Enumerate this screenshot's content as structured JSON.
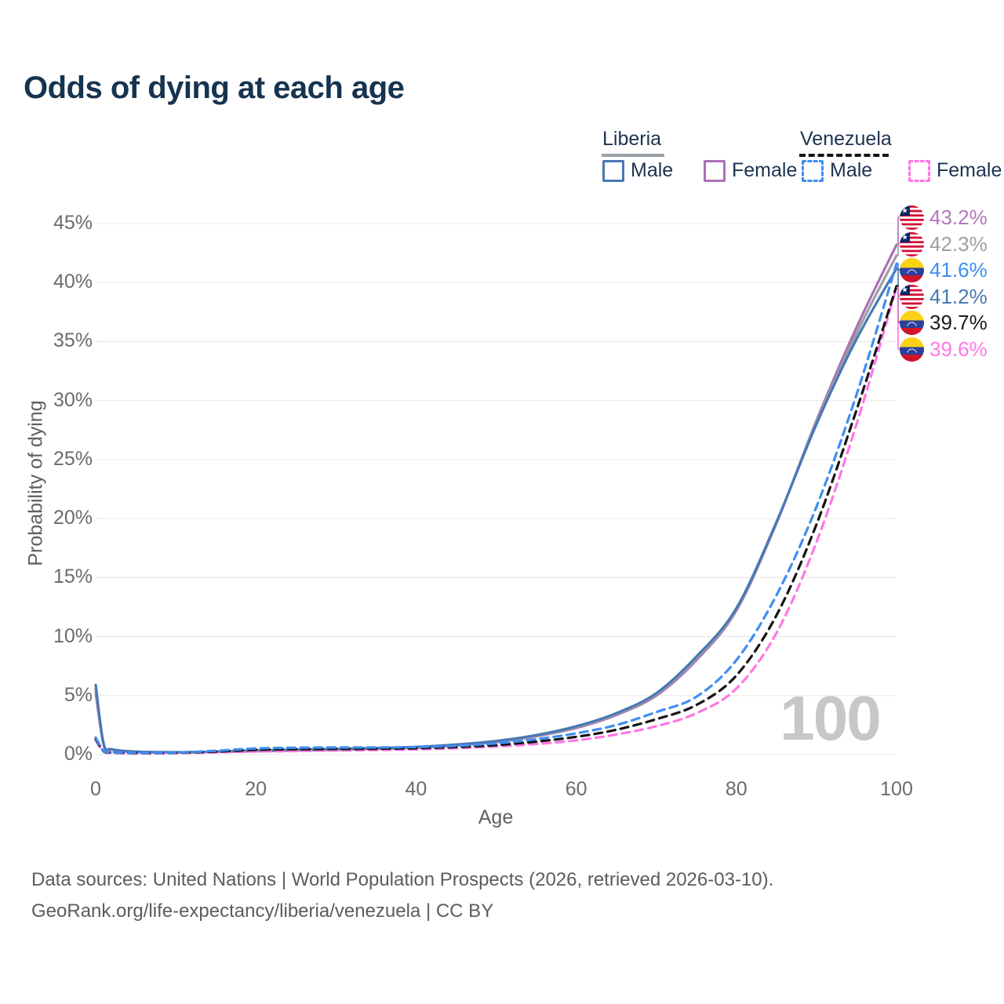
{
  "title": "Odds of dying at each age",
  "watermark": "100",
  "legend": {
    "liberia": {
      "label": "Liberia",
      "male": "Male",
      "female": "Female"
    },
    "venezuela": {
      "label": "Venezuela",
      "male": "Male",
      "female": "Female"
    }
  },
  "footer": {
    "line1": "Data sources: United Nations | World Population Prospects (2026, retrieved 2026-03-10).",
    "line2": "GeoRank.org/life-expectancy/liberia/venezuela | CC BY"
  },
  "colors": {
    "title_navy": "#16334f",
    "liberia_male": "#4878b4",
    "liberia_female": "#aa70b5",
    "liberia_total": "#9c9ea3",
    "venezuela_male": "#3f8ef2",
    "venezuela_female": "#ff77e4",
    "venezuela_total": "#141414",
    "grid": "#ececec",
    "tick_text": "#6b6b6b"
  },
  "chart_data": {
    "type": "line",
    "title": "Odds of dying at each age",
    "xlabel": "Age",
    "ylabel": "Probability of dying",
    "xlim": [
      0,
      100
    ],
    "ylim": [
      0,
      45
    ],
    "x_ticks": [
      0,
      20,
      40,
      60,
      80,
      100
    ],
    "y_ticks": [
      "0%",
      "5%",
      "10%",
      "15%",
      "20%",
      "25%",
      "30%",
      "35%",
      "40%",
      "45%"
    ],
    "grid": "horizontal-only",
    "legend_position": "top-right",
    "x": [
      0,
      1,
      2,
      5,
      10,
      15,
      20,
      25,
      30,
      35,
      40,
      45,
      50,
      55,
      60,
      65,
      70,
      75,
      80,
      85,
      90,
      95,
      100
    ],
    "series": [
      {
        "name": "Liberia Female",
        "country": "liberia",
        "sex": "female",
        "style": "solid",
        "color": "#aa70b5",
        "values": [
          5.2,
          0.8,
          0.4,
          0.22,
          0.18,
          0.22,
          0.28,
          0.34,
          0.4,
          0.48,
          0.58,
          0.78,
          1.05,
          1.55,
          2.25,
          3.35,
          5.0,
          8.0,
          12.2,
          19.6,
          28.3,
          36.2,
          43.2
        ]
      },
      {
        "name": "Liberia Total",
        "country": "liberia",
        "sex": "both",
        "style": "solid",
        "color": "#9c9ea3",
        "values": [
          5.55,
          0.85,
          0.42,
          0.24,
          0.19,
          0.24,
          0.32,
          0.38,
          0.44,
          0.52,
          0.62,
          0.82,
          1.1,
          1.6,
          2.32,
          3.42,
          5.1,
          8.15,
          12.3,
          19.65,
          28.15,
          35.7,
          42.3
        ]
      },
      {
        "name": "Liberia Male",
        "country": "liberia",
        "sex": "male",
        "style": "solid",
        "color": "#4878b4",
        "values": [
          5.9,
          0.9,
          0.45,
          0.25,
          0.2,
          0.25,
          0.35,
          0.42,
          0.48,
          0.55,
          0.65,
          0.85,
          1.15,
          1.65,
          2.4,
          3.5,
          5.2,
          8.3,
          12.4,
          19.7,
          28.0,
          35.2,
          41.2
        ]
      },
      {
        "name": "Venezuela Female",
        "country": "venezuela",
        "sex": "female",
        "style": "dashed",
        "color": "#ff77e4",
        "values": [
          1.2,
          0.25,
          0.15,
          0.1,
          0.12,
          0.18,
          0.26,
          0.3,
          0.34,
          0.38,
          0.44,
          0.54,
          0.68,
          0.9,
          1.2,
          1.7,
          2.4,
          3.5,
          5.6,
          10.3,
          18.0,
          28.0,
          39.6
        ]
      },
      {
        "name": "Venezuela Total",
        "country": "venezuela",
        "sex": "both",
        "style": "dashed",
        "color": "#141414",
        "values": [
          1.33,
          0.28,
          0.18,
          0.13,
          0.15,
          0.25,
          0.4,
          0.45,
          0.47,
          0.49,
          0.54,
          0.64,
          0.8,
          1.1,
          1.5,
          2.1,
          3.0,
          4.2,
          6.7,
          11.8,
          19.5,
          29.2,
          39.7
        ]
      },
      {
        "name": "Venezuela Male",
        "country": "venezuela",
        "sex": "male",
        "style": "dashed",
        "color": "#3f8ef2",
        "values": [
          1.45,
          0.3,
          0.2,
          0.15,
          0.17,
          0.32,
          0.52,
          0.58,
          0.6,
          0.6,
          0.64,
          0.74,
          0.95,
          1.3,
          1.8,
          2.5,
          3.6,
          4.9,
          8.0,
          13.5,
          21.0,
          30.5,
          41.6
        ]
      }
    ],
    "end_labels": [
      {
        "flag": "liberia",
        "text": "43.2%",
        "value": 43.2,
        "color": "#b277bb",
        "series": "Liberia Female"
      },
      {
        "flag": "liberia",
        "text": "42.3%",
        "value": 42.3,
        "color": "#a0a0a0",
        "series": "Liberia Total"
      },
      {
        "flag": "venezuela",
        "text": "41.6%",
        "value": 41.6,
        "color": "#3f8ef2",
        "series": "Venezuela Male"
      },
      {
        "flag": "liberia",
        "text": "41.2%",
        "value": 41.2,
        "color": "#4878b4",
        "series": "Liberia Male"
      },
      {
        "flag": "venezuela",
        "text": "39.7%",
        "value": 39.7,
        "color": "#1a1a1a",
        "series": "Venezuela Total"
      },
      {
        "flag": "venezuela",
        "text": "39.6%",
        "value": 39.6,
        "color": "#ff77e4",
        "series": "Venezuela Female"
      }
    ],
    "age_counter": "100"
  }
}
